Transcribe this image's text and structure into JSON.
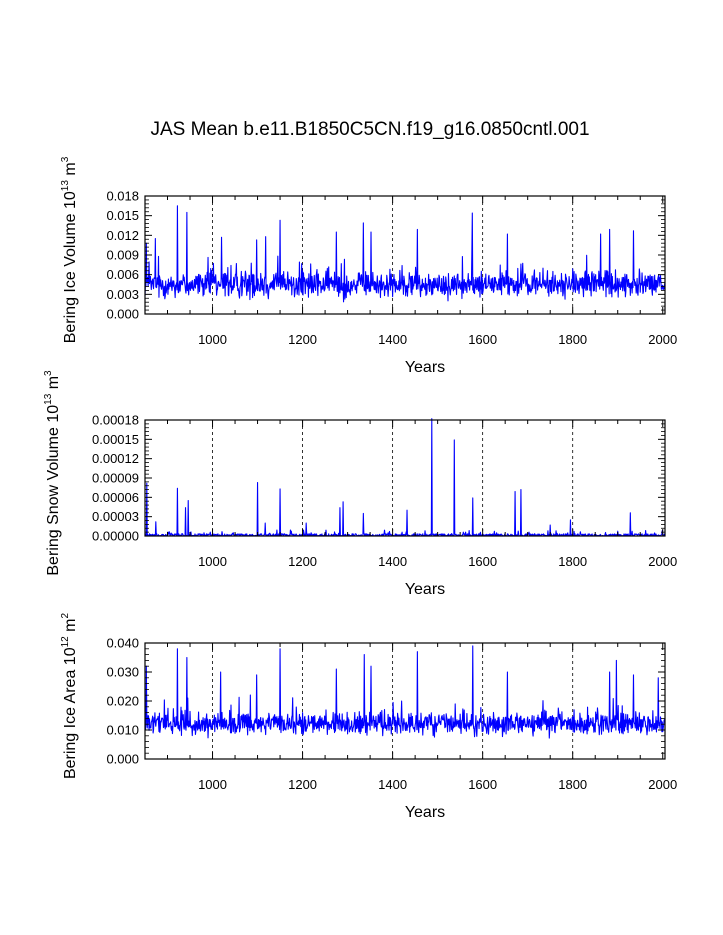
{
  "figure": {
    "title": "JAS Mean b.e11.B1850C5CN.f19_g16.0850cntl.001"
  },
  "chart_data": [
    {
      "type": "line",
      "title": "",
      "xlabel": "Years",
      "ylabel": "Bering Ice Volume 10",
      "ylabel_exp": "13",
      "ylabel_unit": "m",
      "ylabel_unit_exp": "3",
      "xlim": [
        850,
        2005
      ],
      "ylim": [
        0,
        0.018
      ],
      "xticks": [
        1000,
        1200,
        1400,
        1600,
        1800,
        2000
      ],
      "yticks": [
        0,
        0.003,
        0.006,
        0.009,
        0.012,
        0.015,
        0.018
      ],
      "ytick_labels": [
        "0.000",
        "0.003",
        "0.006",
        "0.009",
        "0.012",
        "0.015",
        "0.018"
      ],
      "grid_x": [
        1000,
        1200,
        1400,
        1600,
        1800
      ],
      "series": [
        {
          "name": "Bering Ice Volume",
          "color": "#0000ff",
          "kind": "ice_volume",
          "base": 0.0042,
          "spread": 0.0026,
          "floor": 0.0,
          "peaks": [
            [
              853,
              0.0108
            ],
            [
              873,
              0.0115
            ],
            [
              922,
              0.0165
            ],
            [
              943,
              0.0155
            ],
            [
              1020,
              0.0117
            ],
            [
              1098,
              0.0113
            ],
            [
              1118,
              0.0118
            ],
            [
              1150,
              0.0143
            ],
            [
              1275,
              0.0125
            ],
            [
              1335,
              0.0139
            ],
            [
              1352,
              0.0125
            ],
            [
              1455,
              0.0129
            ],
            [
              1577,
              0.0154
            ],
            [
              1655,
              0.0122
            ],
            [
              1862,
              0.0122
            ],
            [
              1882,
              0.0129
            ],
            [
              1935,
              0.0127
            ]
          ]
        }
      ]
    },
    {
      "type": "line",
      "title": "",
      "xlabel": "Years",
      "ylabel": "Bering Snow Volume 10",
      "ylabel_exp": "13",
      "ylabel_unit": "m",
      "ylabel_unit_exp": "3",
      "xlim": [
        850,
        2005
      ],
      "ylim": [
        0,
        0.00018
      ],
      "xticks": [
        1000,
        1200,
        1400,
        1600,
        1800,
        2000
      ],
      "yticks": [
        0,
        3e-05,
        6e-05,
        9e-05,
        0.00012,
        0.00015,
        0.00018
      ],
      "ytick_labels": [
        "0.00000",
        "0.00003",
        "0.00006",
        "0.00009",
        "0.00012",
        "0.00015",
        "0.00018"
      ],
      "grid_x": [
        1000,
        1200,
        1400,
        1600,
        1800
      ],
      "series": [
        {
          "name": "Bering Snow Volume",
          "color": "#0000ff",
          "kind": "snow_volume",
          "base": 1.5e-06,
          "spread": 2e-06,
          "floor": 0.0,
          "peaks": [
            [
              854,
              8.2e-05
            ],
            [
              874,
              2.2e-05
            ],
            [
              922,
              7.4e-05
            ],
            [
              940,
              4.4e-05
            ],
            [
              946,
              5.5e-05
            ],
            [
              1100,
              8.3e-05
            ],
            [
              1117,
              2e-05
            ],
            [
              1150,
              7.3e-05
            ],
            [
              1208,
              2e-05
            ],
            [
              1283,
              4.4e-05
            ],
            [
              1290,
              5.3e-05
            ],
            [
              1335,
              3.5e-05
            ],
            [
              1432,
              4e-05
            ],
            [
              1487,
              0.000182
            ],
            [
              1537,
              0.000149
            ],
            [
              1578,
              5.9e-05
            ],
            [
              1672,
              6.9e-05
            ],
            [
              1685,
              7.2e-05
            ],
            [
              1750,
              1.7e-05
            ],
            [
              1795,
              2.5e-05
            ],
            [
              1928,
              3.6e-05
            ]
          ]
        }
      ]
    },
    {
      "type": "line",
      "title": "",
      "xlabel": "Years",
      "ylabel": "Bering Ice Area 10",
      "ylabel_exp": "12",
      "ylabel_unit": "m",
      "ylabel_unit_exp": "2",
      "xlim": [
        850,
        2005
      ],
      "ylim": [
        0,
        0.04
      ],
      "xticks": [
        1000,
        1200,
        1400,
        1600,
        1800,
        2000
      ],
      "yticks": [
        0,
        0.01,
        0.02,
        0.03,
        0.04
      ],
      "ytick_labels": [
        "0.000",
        "0.010",
        "0.020",
        "0.030",
        "0.040"
      ],
      "grid_x": [
        1000,
        1200,
        1400,
        1600,
        1800
      ],
      "series": [
        {
          "name": "Bering Ice Area",
          "color": "#0000ff",
          "kind": "ice_area",
          "base": 0.0115,
          "spread": 0.0052,
          "floor": 0.0,
          "peaks": [
            [
              853,
              0.032
            ],
            [
              922,
              0.038
            ],
            [
              943,
              0.035
            ],
            [
              1018,
              0.03
            ],
            [
              1098,
              0.029
            ],
            [
              1150,
              0.038
            ],
            [
              1275,
              0.031
            ],
            [
              1337,
              0.036
            ],
            [
              1352,
              0.032
            ],
            [
              1455,
              0.037
            ],
            [
              1578,
              0.039
            ],
            [
              1655,
              0.03
            ],
            [
              1882,
              0.03
            ],
            [
              1897,
              0.034
            ],
            [
              1935,
              0.029
            ],
            [
              1990,
              0.028
            ]
          ]
        }
      ]
    }
  ]
}
